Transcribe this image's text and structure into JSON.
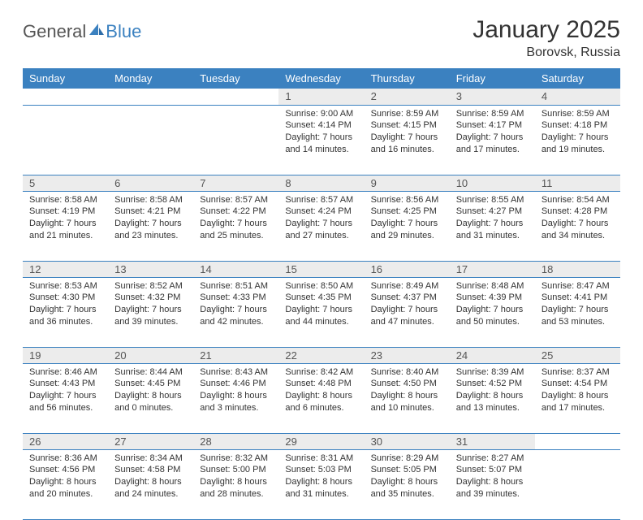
{
  "brand": {
    "part1": "General",
    "part2": "Blue"
  },
  "title": "January 2025",
  "location": "Borovsk, Russia",
  "colors": {
    "header_bg": "#3b81c0",
    "header_text": "#ffffff",
    "daynum_bg": "#ececec",
    "text": "#333333",
    "rule": "#3b81c0",
    "logo_gray": "#555555",
    "logo_blue": "#3b81c0"
  },
  "typography": {
    "title_fontsize": 30,
    "location_fontsize": 16,
    "header_fontsize": 13,
    "daynum_fontsize": 13,
    "body_fontsize": 11
  },
  "day_headers": [
    "Sunday",
    "Monday",
    "Tuesday",
    "Wednesday",
    "Thursday",
    "Friday",
    "Saturday"
  ],
  "weeks": [
    [
      null,
      null,
      null,
      {
        "n": "1",
        "sunrise": "9:00 AM",
        "sunset": "4:14 PM",
        "daylight": "7 hours and 14 minutes."
      },
      {
        "n": "2",
        "sunrise": "8:59 AM",
        "sunset": "4:15 PM",
        "daylight": "7 hours and 16 minutes."
      },
      {
        "n": "3",
        "sunrise": "8:59 AM",
        "sunset": "4:17 PM",
        "daylight": "7 hours and 17 minutes."
      },
      {
        "n": "4",
        "sunrise": "8:59 AM",
        "sunset": "4:18 PM",
        "daylight": "7 hours and 19 minutes."
      }
    ],
    [
      {
        "n": "5",
        "sunrise": "8:58 AM",
        "sunset": "4:19 PM",
        "daylight": "7 hours and 21 minutes."
      },
      {
        "n": "6",
        "sunrise": "8:58 AM",
        "sunset": "4:21 PM",
        "daylight": "7 hours and 23 minutes."
      },
      {
        "n": "7",
        "sunrise": "8:57 AM",
        "sunset": "4:22 PM",
        "daylight": "7 hours and 25 minutes."
      },
      {
        "n": "8",
        "sunrise": "8:57 AM",
        "sunset": "4:24 PM",
        "daylight": "7 hours and 27 minutes."
      },
      {
        "n": "9",
        "sunrise": "8:56 AM",
        "sunset": "4:25 PM",
        "daylight": "7 hours and 29 minutes."
      },
      {
        "n": "10",
        "sunrise": "8:55 AM",
        "sunset": "4:27 PM",
        "daylight": "7 hours and 31 minutes."
      },
      {
        "n": "11",
        "sunrise": "8:54 AM",
        "sunset": "4:28 PM",
        "daylight": "7 hours and 34 minutes."
      }
    ],
    [
      {
        "n": "12",
        "sunrise": "8:53 AM",
        "sunset": "4:30 PM",
        "daylight": "7 hours and 36 minutes."
      },
      {
        "n": "13",
        "sunrise": "8:52 AM",
        "sunset": "4:32 PM",
        "daylight": "7 hours and 39 minutes."
      },
      {
        "n": "14",
        "sunrise": "8:51 AM",
        "sunset": "4:33 PM",
        "daylight": "7 hours and 42 minutes."
      },
      {
        "n": "15",
        "sunrise": "8:50 AM",
        "sunset": "4:35 PM",
        "daylight": "7 hours and 44 minutes."
      },
      {
        "n": "16",
        "sunrise": "8:49 AM",
        "sunset": "4:37 PM",
        "daylight": "7 hours and 47 minutes."
      },
      {
        "n": "17",
        "sunrise": "8:48 AM",
        "sunset": "4:39 PM",
        "daylight": "7 hours and 50 minutes."
      },
      {
        "n": "18",
        "sunrise": "8:47 AM",
        "sunset": "4:41 PM",
        "daylight": "7 hours and 53 minutes."
      }
    ],
    [
      {
        "n": "19",
        "sunrise": "8:46 AM",
        "sunset": "4:43 PM",
        "daylight": "7 hours and 56 minutes."
      },
      {
        "n": "20",
        "sunrise": "8:44 AM",
        "sunset": "4:45 PM",
        "daylight": "8 hours and 0 minutes."
      },
      {
        "n": "21",
        "sunrise": "8:43 AM",
        "sunset": "4:46 PM",
        "daylight": "8 hours and 3 minutes."
      },
      {
        "n": "22",
        "sunrise": "8:42 AM",
        "sunset": "4:48 PM",
        "daylight": "8 hours and 6 minutes."
      },
      {
        "n": "23",
        "sunrise": "8:40 AM",
        "sunset": "4:50 PM",
        "daylight": "8 hours and 10 minutes."
      },
      {
        "n": "24",
        "sunrise": "8:39 AM",
        "sunset": "4:52 PM",
        "daylight": "8 hours and 13 minutes."
      },
      {
        "n": "25",
        "sunrise": "8:37 AM",
        "sunset": "4:54 PM",
        "daylight": "8 hours and 17 minutes."
      }
    ],
    [
      {
        "n": "26",
        "sunrise": "8:36 AM",
        "sunset": "4:56 PM",
        "daylight": "8 hours and 20 minutes."
      },
      {
        "n": "27",
        "sunrise": "8:34 AM",
        "sunset": "4:58 PM",
        "daylight": "8 hours and 24 minutes."
      },
      {
        "n": "28",
        "sunrise": "8:32 AM",
        "sunset": "5:00 PM",
        "daylight": "8 hours and 28 minutes."
      },
      {
        "n": "29",
        "sunrise": "8:31 AM",
        "sunset": "5:03 PM",
        "daylight": "8 hours and 31 minutes."
      },
      {
        "n": "30",
        "sunrise": "8:29 AM",
        "sunset": "5:05 PM",
        "daylight": "8 hours and 35 minutes."
      },
      {
        "n": "31",
        "sunrise": "8:27 AM",
        "sunset": "5:07 PM",
        "daylight": "8 hours and 39 minutes."
      },
      null
    ]
  ],
  "labels": {
    "sunrise": "Sunrise:",
    "sunset": "Sunset:",
    "daylight": "Daylight:"
  }
}
